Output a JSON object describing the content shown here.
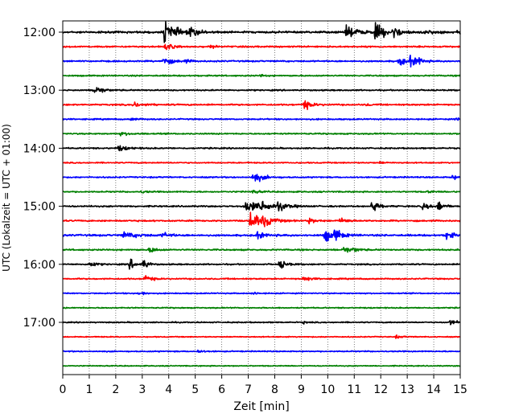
{
  "chart_data": {
    "type": "line",
    "subtype": "helicorder-seismogram",
    "xlabel": "Zeit  [min]",
    "ylabel": "UTC (Lokalzeit = UTC + 01:00)",
    "xlim": [
      0,
      15
    ],
    "x_ticks": [
      0,
      1,
      2,
      3,
      4,
      5,
      6,
      7,
      8,
      9,
      10,
      11,
      12,
      13,
      14,
      15
    ],
    "y_ticks": [
      {
        "label": "12:00",
        "line_index": 0
      },
      {
        "label": "13:00",
        "line_index": 4
      },
      {
        "label": "14:00",
        "line_index": 8
      },
      {
        "label": "15:00",
        "line_index": 12
      },
      {
        "label": "16:00",
        "line_index": 16
      },
      {
        "label": "17:00",
        "line_index": 20
      }
    ],
    "minutes_per_line": 15,
    "grid": {
      "x": true,
      "style": "dotted"
    },
    "trace_colors": [
      "#000000",
      "#ff0000",
      "#0000ff",
      "#008000"
    ],
    "traces": [
      {
        "line": 0,
        "color": "#000000",
        "noise": 0.6,
        "events": [
          [
            3.85,
            7,
            0.35
          ],
          [
            4.8,
            2.5,
            0.3
          ],
          [
            10.7,
            3.5,
            0.4
          ],
          [
            11.8,
            4.5,
            0.4
          ],
          [
            12.5,
            3,
            0.2
          ],
          [
            13.7,
            1.2,
            0.3
          ],
          [
            14.9,
            1.5,
            0.1
          ]
        ]
      },
      {
        "line": 1,
        "color": "#ff0000",
        "noise": 0.45,
        "events": [
          [
            3.9,
            2.5,
            0.2
          ],
          [
            5.6,
            0.8,
            0.2
          ]
        ]
      },
      {
        "line": 2,
        "color": "#0000ff",
        "noise": 0.45,
        "events": [
          [
            3.8,
            3,
            0.25
          ],
          [
            4.6,
            1,
            0.2
          ],
          [
            12.7,
            3,
            0.2
          ],
          [
            13.1,
            3,
            0.25
          ],
          [
            13.4,
            2,
            0.15
          ]
        ]
      },
      {
        "line": 3,
        "color": "#008000",
        "noise": 0.4,
        "events": [
          [
            7.5,
            0.8,
            0.1
          ]
        ]
      },
      {
        "line": 4,
        "color": "#000000",
        "noise": 0.4,
        "events": [
          [
            1.2,
            3,
            0.25
          ]
        ]
      },
      {
        "line": 5,
        "color": "#ff0000",
        "noise": 0.45,
        "events": [
          [
            2.7,
            1.5,
            0.3
          ],
          [
            9.1,
            3,
            0.25
          ],
          [
            11.5,
            0.8,
            0.1
          ]
        ]
      },
      {
        "line": 6,
        "color": "#0000ff",
        "noise": 0.4,
        "events": [
          [
            2.6,
            0.8,
            0.2
          ],
          [
            14.9,
            1,
            0.15
          ]
        ]
      },
      {
        "line": 7,
        "color": "#008000",
        "noise": 0.4,
        "events": [
          [
            2.2,
            1,
            0.3
          ]
        ]
      },
      {
        "line": 8,
        "color": "#000000",
        "noise": 0.4,
        "events": [
          [
            2.1,
            1.8,
            0.3
          ]
        ]
      },
      {
        "line": 9,
        "color": "#ff0000",
        "noise": 0.35,
        "events": [
          [
            12,
            0.8,
            0.1
          ]
        ]
      },
      {
        "line": 10,
        "color": "#0000ff",
        "noise": 0.4,
        "events": [
          [
            7.2,
            3.5,
            0.3
          ],
          [
            14.7,
            1.2,
            0.2
          ]
        ]
      },
      {
        "line": 11,
        "color": "#008000",
        "noise": 0.4,
        "events": [
          [
            3.0,
            0.8,
            0.15
          ],
          [
            7.2,
            1,
            0.2
          ],
          [
            13.8,
            0.8,
            0.15
          ]
        ]
      },
      {
        "line": 12,
        "color": "#000000",
        "noise": 0.45,
        "events": [
          [
            6.9,
            4,
            0.45
          ],
          [
            7.5,
            3,
            0.3
          ],
          [
            8.1,
            2.5,
            0.3
          ],
          [
            11.7,
            6,
            0.15
          ],
          [
            13.6,
            2,
            0.2
          ],
          [
            14.2,
            4,
            0.15
          ]
        ]
      },
      {
        "line": 13,
        "color": "#ff0000",
        "noise": 0.45,
        "events": [
          [
            7.1,
            6.5,
            0.3
          ],
          [
            7.6,
            3,
            0.3
          ],
          [
            9.3,
            1.5,
            0.2
          ],
          [
            10.5,
            1.5,
            0.15
          ],
          [
            10.7,
            1.2,
            0.1
          ]
        ]
      },
      {
        "line": 14,
        "color": "#0000ff",
        "noise": 0.55,
        "events": [
          [
            2.3,
            1.8,
            0.5
          ],
          [
            3.8,
            1.5,
            0.2
          ],
          [
            7.3,
            2,
            0.3
          ],
          [
            9.9,
            4,
            0.3
          ],
          [
            10.3,
            3,
            0.2
          ],
          [
            14.5,
            3,
            0.2
          ]
        ]
      },
      {
        "line": 15,
        "color": "#008000",
        "noise": 0.45,
        "events": [
          [
            3.3,
            2,
            0.2
          ],
          [
            10.6,
            2,
            0.25
          ],
          [
            11.0,
            1,
            0.15
          ]
        ]
      },
      {
        "line": 16,
        "color": "#000000",
        "noise": 0.4,
        "events": [
          [
            1.0,
            2,
            0.2
          ],
          [
            2.55,
            3.5,
            0.15
          ],
          [
            3.05,
            3.5,
            0.15
          ],
          [
            8.2,
            3,
            0.2
          ]
        ]
      },
      {
        "line": 17,
        "color": "#ff0000",
        "noise": 0.4,
        "events": [
          [
            3.1,
            2.5,
            0.2
          ],
          [
            9.1,
            1.8,
            0.2
          ]
        ]
      },
      {
        "line": 18,
        "color": "#0000ff",
        "noise": 0.35,
        "events": [
          [
            2.9,
            1.5,
            0.15
          ],
          [
            7.2,
            0.8,
            0.15
          ]
        ]
      },
      {
        "line": 19,
        "color": "#008000",
        "noise": 0.35,
        "events": []
      },
      {
        "line": 20,
        "color": "#000000",
        "noise": 0.35,
        "events": [
          [
            9.1,
            0.8,
            0.1
          ],
          [
            14.6,
            1.8,
            0.25
          ]
        ]
      },
      {
        "line": 21,
        "color": "#ff0000",
        "noise": 0.3,
        "events": [
          [
            12.6,
            0.8,
            0.2
          ]
        ]
      },
      {
        "line": 22,
        "color": "#0000ff",
        "noise": 0.35,
        "events": [
          [
            5.1,
            0.8,
            0.2
          ]
        ]
      },
      {
        "line": 23,
        "color": "#008000",
        "noise": 0.3,
        "events": []
      }
    ]
  }
}
